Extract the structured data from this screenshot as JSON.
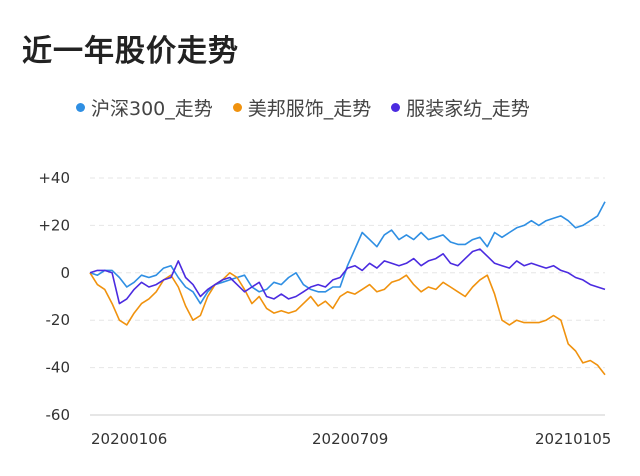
{
  "chart_data": {
    "type": "line",
    "title": "近一年股价走势",
    "x_ticks": [
      "20200106",
      "20200709",
      "20210105"
    ],
    "y_ticks": [
      "+40",
      "+20",
      "0",
      "-20",
      "-40",
      "-60"
    ],
    "ylim": [
      -60,
      40
    ],
    "grid": true,
    "legend_position": "top",
    "series": [
      {
        "name": "沪深300_走势",
        "color": "#2f8fe3",
        "values": [
          0,
          -1,
          1,
          1,
          -2,
          -6,
          -4,
          -1,
          -2,
          -1,
          2,
          3,
          -2,
          -6,
          -8,
          -13,
          -8,
          -5,
          -4,
          -3,
          -2,
          -1,
          -6,
          -8,
          -7,
          -4,
          -5,
          -2,
          0,
          -5,
          -7,
          -8,
          -8,
          -6,
          -6,
          3,
          10,
          17,
          14,
          11,
          16,
          18,
          14,
          16,
          14,
          17,
          14,
          15,
          16,
          13,
          12,
          12,
          14,
          15,
          11,
          17,
          15,
          17,
          19,
          20,
          22,
          20,
          22,
          23,
          24,
          22,
          19,
          20,
          22,
          24,
          30
        ]
      },
      {
        "name": "美邦服饰_走势",
        "color": "#f0920e",
        "values": [
          0,
          -5,
          -7,
          -13,
          -20,
          -22,
          -17,
          -13,
          -11,
          -8,
          -3,
          -1,
          -6,
          -14,
          -20,
          -18,
          -10,
          -5,
          -3,
          0,
          -2,
          -7,
          -13,
          -10,
          -15,
          -17,
          -16,
          -17,
          -16,
          -13,
          -10,
          -14,
          -12,
          -15,
          -10,
          -8,
          -9,
          -7,
          -5,
          -8,
          -7,
          -4,
          -3,
          -1,
          -5,
          -8,
          -6,
          -7,
          -4,
          -6,
          -8,
          -10,
          -6,
          -3,
          -1,
          -9,
          -20,
          -22,
          -20,
          -21,
          -21,
          -21,
          -20,
          -18,
          -20,
          -30,
          -33,
          -38,
          -37,
          -39,
          -43
        ]
      },
      {
        "name": "服装家纺_走势",
        "color": "#4b2be0",
        "values": [
          0,
          1,
          1,
          0,
          -13,
          -11,
          -7,
          -4,
          -6,
          -5,
          -3,
          -2,
          5,
          -2,
          -5,
          -10,
          -7,
          -5,
          -3,
          -2,
          -5,
          -8,
          -6,
          -4,
          -10,
          -11,
          -9,
          -11,
          -10,
          -8,
          -6,
          -5,
          -6,
          -3,
          -2,
          2,
          3,
          1,
          4,
          2,
          5,
          4,
          3,
          4,
          6,
          3,
          5,
          6,
          8,
          4,
          3,
          6,
          9,
          10,
          7,
          4,
          3,
          2,
          5,
          3,
          4,
          3,
          2,
          3,
          1,
          0,
          -2,
          -3,
          -5,
          -6,
          -7
        ]
      }
    ]
  }
}
